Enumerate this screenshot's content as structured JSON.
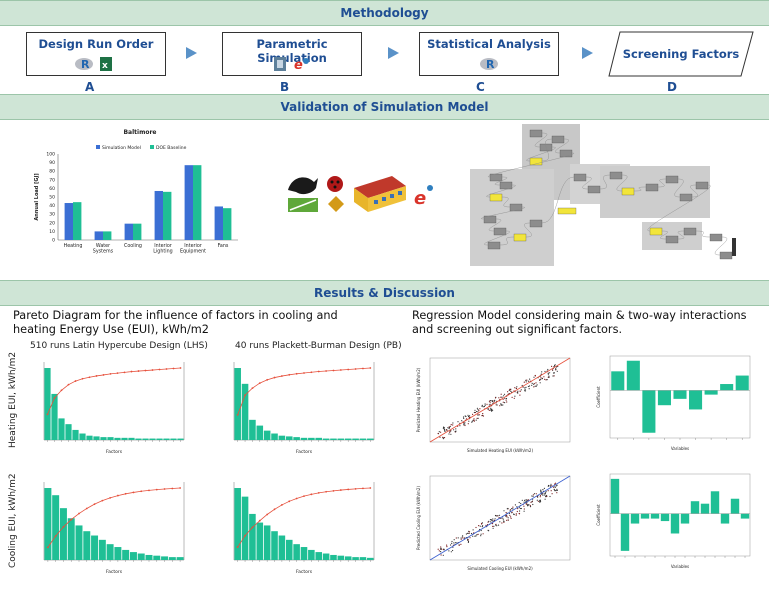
{
  "methodology": {
    "banner": "Methodology",
    "steps": [
      {
        "title": "Design Run Order",
        "letter": "A"
      },
      {
        "title": "Parametric Simulation",
        "letter": "B"
      },
      {
        "title": "Statistical Analysis",
        "letter": "C"
      },
      {
        "title": "Screening Factors",
        "letter": "D"
      }
    ]
  },
  "validation": {
    "banner": "Validation of Simulation Model"
  },
  "results": {
    "banner": "Results & Discussion",
    "left_heading": "Pareto Diagram for the influence of factors in cooling and heating Energy Use (EUI), kWh/m2",
    "right_heading": "Regression Model considering main & two-way interactions and screening out significant factors.",
    "lhs_title": "510 runs Latin Hypercube Design (LHS)",
    "pb_title": "40 runs Plackett-Burman Design (PB)",
    "heating_label": "Heating EUI, kWh/m2",
    "cooling_label": "Cooling EUI, kWh/m2"
  },
  "colors": {
    "banner_bg": "#cfe5d6",
    "banner_text": "#1f4e93",
    "bar_teal": "#1fbf95",
    "bar_blue": "#3b6fd4",
    "pareto_line": "#e6503c"
  },
  "chart_data": [
    {
      "type": "bar",
      "title": "Baltimore",
      "ylabel": "Annual Load [GJ]",
      "ylim": [
        0,
        100
      ],
      "yticks": [
        "0",
        "10",
        "20",
        "30",
        "40",
        "50",
        "60",
        "70",
        "80",
        "90",
        "100"
      ],
      "categories": [
        "Heating",
        "Water Systems",
        "Cooling",
        "Interior Lighting",
        "Interior Equipment",
        "Fans"
      ],
      "series": [
        {
          "name": "Simulation Model",
          "values": [
            43,
            10,
            19,
            57,
            87,
            39
          ]
        },
        {
          "name": "DOE Baseline",
          "values": [
            44,
            10,
            19,
            56,
            87,
            37
          ]
        }
      ],
      "legend": "top-center"
    },
    {
      "type": "bar",
      "panel": "heating-lhs",
      "xlabel": "Factors",
      "values": [
        100,
        64,
        30,
        22,
        14,
        9,
        6,
        5,
        4,
        4,
        3,
        3,
        3,
        2,
        2,
        2,
        2,
        2,
        2,
        2
      ],
      "pareto": true
    },
    {
      "type": "bar",
      "panel": "heating-pb",
      "xlabel": "Factors",
      "values": [
        100,
        78,
        28,
        20,
        13,
        9,
        6,
        5,
        4,
        3,
        3,
        3,
        2,
        2,
        2,
        2,
        2,
        2,
        2
      ],
      "pareto": true
    },
    {
      "type": "bar",
      "panel": "cooling-lhs",
      "xlabel": "Factors",
      "values": [
        100,
        90,
        72,
        58,
        48,
        40,
        34,
        28,
        22,
        18,
        14,
        11,
        9,
        7,
        6,
        5,
        4,
        4
      ],
      "pareto": true
    },
    {
      "type": "bar",
      "panel": "cooling-pb",
      "xlabel": "Factors",
      "values": [
        100,
        88,
        64,
        52,
        48,
        40,
        34,
        28,
        22,
        18,
        14,
        11,
        9,
        7,
        6,
        5,
        4,
        4,
        3
      ],
      "pareto": true
    },
    {
      "type": "scatter",
      "panel": "heating-regression",
      "xlabel": "Simulated Heating EUI (kWh/m2)",
      "ylabel": "Predicted Heating EUI (kWh/m2)"
    },
    {
      "type": "scatter",
      "panel": "cooling-regression",
      "xlabel": "Simulated Cooling EUI (kWh/m2)",
      "ylabel": "Predicted Cooling EUI (kWh/m2)"
    },
    {
      "type": "bar",
      "panel": "heating-coefficients",
      "xlabel": "Variables",
      "ylabel": "Coefficient",
      "values": [
        0.9,
        1.4,
        -2.0,
        -0.7,
        -0.4,
        -0.9,
        -0.2,
        0.3,
        0.7
      ]
    },
    {
      "type": "bar",
      "panel": "cooling-coefficients",
      "xlabel": "Variables",
      "ylabel": "Coefficient",
      "values": [
        1.4,
        -1.5,
        -0.4,
        -0.2,
        -0.2,
        -0.3,
        -0.8,
        -0.4,
        0.5,
        0.4,
        0.9,
        -0.4,
        0.6,
        -0.2
      ]
    }
  ]
}
